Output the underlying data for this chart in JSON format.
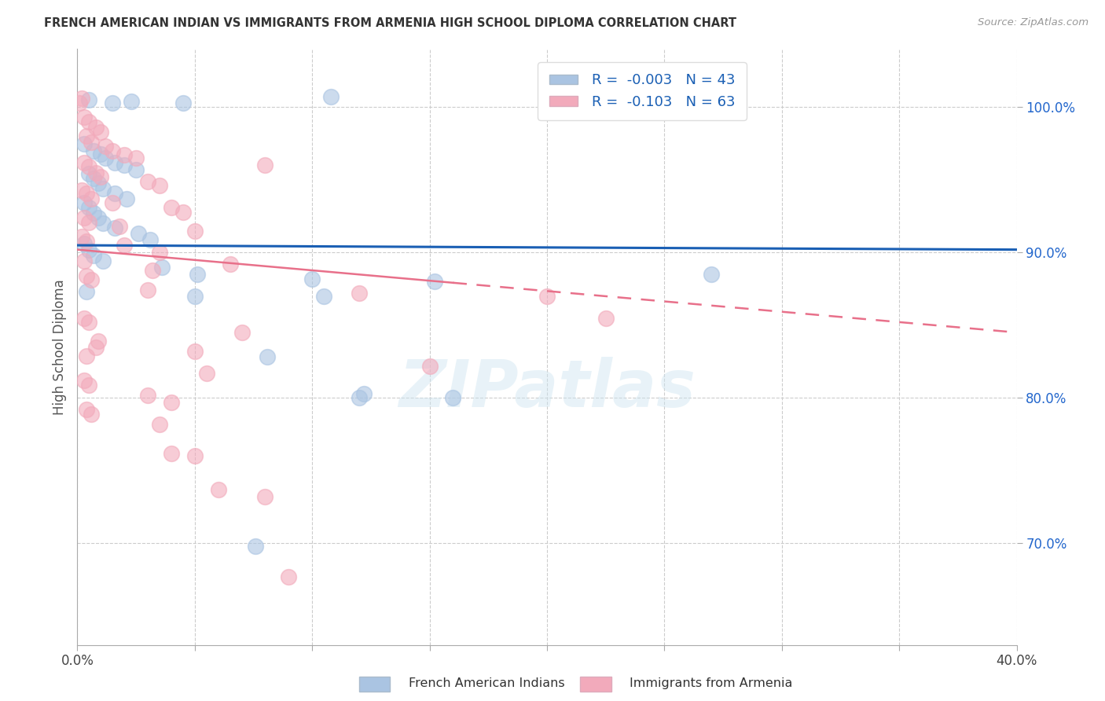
{
  "title": "FRENCH AMERICAN INDIAN VS IMMIGRANTS FROM ARMENIA HIGH SCHOOL DIPLOMA CORRELATION CHART",
  "source": "Source: ZipAtlas.com",
  "ylabel": "High School Diploma",
  "y_ticks": [
    100.0,
    90.0,
    80.0,
    70.0
  ],
  "y_tick_labels": [
    "100.0%",
    "90.0%",
    "80.0%",
    "70.0%"
  ],
  "xlim": [
    0.0,
    40.0
  ],
  "ylim": [
    63.0,
    104.0
  ],
  "R_blue": -0.003,
  "N_blue": 43,
  "R_pink": -0.103,
  "N_pink": 63,
  "legend_label_blue": "French American Indians",
  "legend_label_pink": "Immigrants from Armenia",
  "blue_color": "#aac4e2",
  "pink_color": "#f2aabb",
  "trend_blue_color": "#1a5fb4",
  "trend_pink_color": "#e8708a",
  "blue_trend_y0": 90.5,
  "blue_trend_y1": 90.2,
  "pink_trend_y0": 90.2,
  "pink_trend_y1": 84.5,
  "pink_solid_end": 16.0,
  "blue_scatter": [
    [
      0.5,
      100.5
    ],
    [
      1.5,
      100.3
    ],
    [
      2.3,
      100.4
    ],
    [
      4.5,
      100.3
    ],
    [
      10.8,
      100.7
    ],
    [
      0.3,
      97.5
    ],
    [
      0.7,
      97.0
    ],
    [
      1.0,
      96.8
    ],
    [
      1.2,
      96.5
    ],
    [
      1.6,
      96.2
    ],
    [
      2.0,
      96.0
    ],
    [
      2.5,
      95.7
    ],
    [
      0.5,
      95.4
    ],
    [
      0.7,
      95.1
    ],
    [
      0.9,
      94.8
    ],
    [
      1.1,
      94.4
    ],
    [
      1.6,
      94.1
    ],
    [
      2.1,
      93.7
    ],
    [
      0.3,
      93.4
    ],
    [
      0.5,
      93.1
    ],
    [
      0.7,
      92.7
    ],
    [
      0.9,
      92.4
    ],
    [
      1.1,
      92.0
    ],
    [
      1.6,
      91.7
    ],
    [
      2.6,
      91.3
    ],
    [
      3.1,
      90.9
    ],
    [
      0.3,
      90.6
    ],
    [
      0.5,
      90.2
    ],
    [
      0.7,
      89.8
    ],
    [
      1.1,
      89.4
    ],
    [
      3.6,
      89.0
    ],
    [
      5.1,
      88.5
    ],
    [
      10.0,
      88.2
    ],
    [
      15.2,
      88.0
    ],
    [
      0.4,
      87.3
    ],
    [
      5.0,
      87.0
    ],
    [
      10.5,
      87.0
    ],
    [
      8.1,
      82.8
    ],
    [
      12.2,
      80.3
    ],
    [
      12.0,
      80.0
    ],
    [
      16.0,
      80.0
    ],
    [
      27.0,
      88.5
    ],
    [
      7.6,
      69.8
    ]
  ],
  "pink_scatter": [
    [
      0.1,
      100.3
    ],
    [
      0.2,
      100.6
    ],
    [
      0.3,
      99.3
    ],
    [
      0.5,
      99.0
    ],
    [
      0.8,
      98.6
    ],
    [
      1.0,
      98.3
    ],
    [
      0.4,
      98.0
    ],
    [
      0.6,
      97.6
    ],
    [
      1.2,
      97.3
    ],
    [
      1.5,
      97.0
    ],
    [
      2.0,
      96.7
    ],
    [
      2.5,
      96.5
    ],
    [
      0.3,
      96.2
    ],
    [
      0.5,
      95.9
    ],
    [
      0.8,
      95.5
    ],
    [
      1.0,
      95.2
    ],
    [
      3.0,
      94.9
    ],
    [
      3.5,
      94.6
    ],
    [
      0.2,
      94.3
    ],
    [
      0.4,
      94.1
    ],
    [
      0.6,
      93.7
    ],
    [
      1.5,
      93.4
    ],
    [
      4.0,
      93.1
    ],
    [
      4.5,
      92.8
    ],
    [
      0.3,
      92.4
    ],
    [
      0.5,
      92.1
    ],
    [
      1.8,
      91.8
    ],
    [
      5.0,
      91.5
    ],
    [
      0.2,
      91.1
    ],
    [
      0.4,
      90.8
    ],
    [
      2.0,
      90.5
    ],
    [
      0.3,
      89.4
    ],
    [
      0.4,
      88.4
    ],
    [
      0.6,
      88.1
    ],
    [
      3.0,
      87.4
    ],
    [
      8.0,
      96.0
    ],
    [
      0.3,
      85.5
    ],
    [
      0.5,
      85.2
    ],
    [
      5.0,
      83.2
    ],
    [
      0.4,
      82.9
    ],
    [
      5.5,
      81.7
    ],
    [
      0.3,
      81.2
    ],
    [
      0.5,
      80.9
    ],
    [
      3.0,
      80.2
    ],
    [
      4.0,
      79.7
    ],
    [
      0.4,
      79.2
    ],
    [
      0.6,
      78.9
    ],
    [
      3.5,
      78.2
    ],
    [
      4.0,
      76.2
    ],
    [
      6.0,
      73.7
    ],
    [
      8.0,
      73.2
    ],
    [
      9.0,
      67.7
    ],
    [
      5.0,
      76.0
    ],
    [
      0.8,
      83.5
    ],
    [
      0.9,
      83.9
    ],
    [
      20.0,
      87.0
    ],
    [
      12.0,
      87.2
    ],
    [
      15.0,
      82.2
    ],
    [
      22.5,
      85.5
    ],
    [
      3.5,
      90.0
    ],
    [
      6.5,
      89.2
    ],
    [
      3.2,
      88.8
    ],
    [
      7.0,
      84.5
    ]
  ],
  "watermark": "ZIPatlas",
  "background_color": "#ffffff",
  "grid_color": "#cccccc"
}
